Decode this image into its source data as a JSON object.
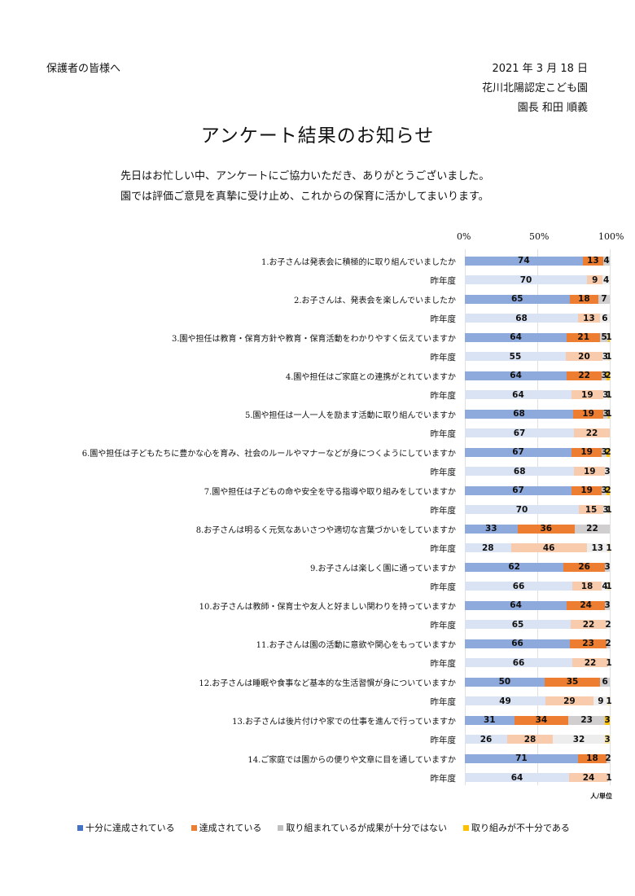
{
  "header": {
    "greeting": "保護者の皆様へ",
    "date": "2021 年 3 月 18 日",
    "school": "花川北陽認定こども園",
    "principal": "園長 和田 順義"
  },
  "title": "アンケート結果のお知らせ",
  "intro": [
    "先日はお忙しい中、アンケートにご協力いただき、ありがとうございました。",
    "園では評価ご意見を真摯に受け止め、これからの保育に活かしてまいります。"
  ],
  "unit_label": "人/単位",
  "colors": {
    "fully": "#8ea9db",
    "achieved": "#ed7d31",
    "partial": "#d0cece",
    "insufficient": "#ffc000",
    "last_fully": "#dae3f3",
    "last_achieved": "#f8cbad",
    "last_partial": "#ededed",
    "last_insufficient": "#ffe699",
    "legend_fully": "#4472c4",
    "legend_achieved": "#ed7d31",
    "legend_partial": "#bfbfbf",
    "legend_insufficient": "#ffc000"
  },
  "chart_data": {
    "type": "bar",
    "orientation": "horizontal",
    "stacked": true,
    "axis": {
      "ticks": [
        "0%",
        "50%",
        "100%"
      ],
      "xlim": [
        0,
        100
      ]
    },
    "legend_position": "bottom",
    "series_names": [
      "十分に達成されている",
      "達成されている",
      "取り組まれているが成果が十分ではない",
      "取り組みが不十分である"
    ],
    "last_year_label": "昨年度",
    "questions": [
      {
        "label": "1.お子さんは発表会に積極的に取り組んでいましたか",
        "this_year": [
          74,
          13,
          4,
          0
        ],
        "last_year": [
          70,
          9,
          4,
          0
        ]
      },
      {
        "label": "2.お子さんは、発表会を楽しんでいましたか",
        "this_year": [
          65,
          18,
          7,
          0
        ],
        "last_year": [
          68,
          13,
          6,
          0
        ]
      },
      {
        "label": "3.園や担任は教育・保育方針や教育・保育活動をわかりやすく伝えていますか",
        "this_year": [
          64,
          21,
          5,
          1
        ],
        "last_year": [
          55,
          20,
          3,
          1
        ]
      },
      {
        "label": "4.園や担任はご家庭との連携がとれていますか",
        "this_year": [
          64,
          22,
          3,
          2
        ],
        "last_year": [
          64,
          19,
          3,
          1
        ]
      },
      {
        "label": "5.園や担任は一人一人を励ます活動に取り組んでいますか",
        "this_year": [
          68,
          19,
          3,
          1
        ],
        "last_year": [
          67,
          22,
          0,
          0
        ]
      },
      {
        "label": "6.園や担任は子どもたちに豊かな心を育み、社会のルールやマナーなどが身につくようにしていますか",
        "this_year": [
          67,
          19,
          3,
          2
        ],
        "last_year": [
          68,
          19,
          3,
          0
        ]
      },
      {
        "label": "7.園や担任は子どもの命や安全を守る指導や取り組みをしていますか",
        "this_year": [
          67,
          19,
          3,
          2
        ],
        "last_year": [
          70,
          15,
          3,
          1
        ]
      },
      {
        "label": "8.お子さんは明るく元気なあいさつや適切な言葉づかいをしていますか",
        "this_year": [
          33,
          36,
          22,
          0
        ],
        "last_year": [
          28,
          46,
          13,
          1
        ]
      },
      {
        "label": "9.お子さんは楽しく園に通っていますか",
        "this_year": [
          62,
          26,
          3,
          0
        ],
        "last_year": [
          66,
          18,
          4,
          1
        ]
      },
      {
        "label": "10.お子さんは教師・保育士や友人と好ましい関わりを持っていますか",
        "this_year": [
          64,
          24,
          3,
          0
        ],
        "last_year": [
          65,
          22,
          2,
          0
        ]
      },
      {
        "label": "11.お子さんは園の活動に意欲や関心をもっていますか",
        "this_year": [
          66,
          23,
          2,
          0
        ],
        "last_year": [
          66,
          22,
          1,
          0
        ]
      },
      {
        "label": "12.お子さんは睡眠や食事など基本的な生活習慣が身についていますか",
        "this_year": [
          50,
          35,
          6,
          0
        ],
        "last_year": [
          49,
          29,
          9,
          1
        ]
      },
      {
        "label": "13.お子さんは後片付けや家での仕事を進んで行っていますか",
        "this_year": [
          31,
          34,
          23,
          3
        ],
        "last_year": [
          26,
          28,
          32,
          3
        ]
      },
      {
        "label": "14.ご家庭では園からの便りや文章に目を通していますか",
        "this_year": [
          71,
          18,
          2,
          0
        ],
        "last_year": [
          64,
          24,
          1,
          0
        ]
      }
    ]
  }
}
